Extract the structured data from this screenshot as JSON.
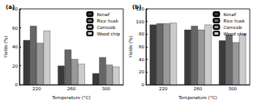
{
  "chart_data": [
    {
      "type": "bar",
      "title": "(a)",
      "x_label": "Temperature (°C)",
      "y_label": "Yields (%)",
      "categories": [
        "220",
        "260",
        "300"
      ],
      "series": [
        {
          "name": "Kenaf",
          "color": "#3a3a3a",
          "values": [
            47,
            20,
            12
          ]
        },
        {
          "name": "Rice husk",
          "color": "#666666",
          "values": [
            62,
            37,
            29
          ]
        },
        {
          "name": "Corncob",
          "color": "#999999",
          "values": [
            44,
            27,
            21
          ]
        },
        {
          "name": "Wood chip",
          "color": "#cccccc",
          "values": [
            57,
            22,
            19
          ]
        }
      ],
      "ylim": [
        0,
        80
      ],
      "yticks": [
        0,
        20,
        40,
        60,
        80
      ],
      "grid": false,
      "legend": "top-right"
    },
    {
      "type": "bar",
      "title": "(b)",
      "x_label": "Temperature (°C)",
      "y_label": "Yields (%)",
      "categories": [
        "220",
        "260",
        "300"
      ],
      "series": [
        {
          "name": "Kenaf",
          "color": "#3a3a3a",
          "values": [
            95,
            87,
            70
          ]
        },
        {
          "name": "Rice husk",
          "color": "#666666",
          "values": [
            97,
            93,
            79
          ]
        },
        {
          "name": "Corncob",
          "color": "#999999",
          "values": [
            97,
            87,
            67
          ]
        },
        {
          "name": "Wood chip",
          "color": "#cccccc",
          "values": [
            98,
            95,
            80
          ]
        }
      ],
      "ylim": [
        0,
        120
      ],
      "yticks": [
        0,
        20,
        40,
        60,
        80,
        100,
        120
      ],
      "grid": false,
      "legend": "top-right"
    }
  ]
}
